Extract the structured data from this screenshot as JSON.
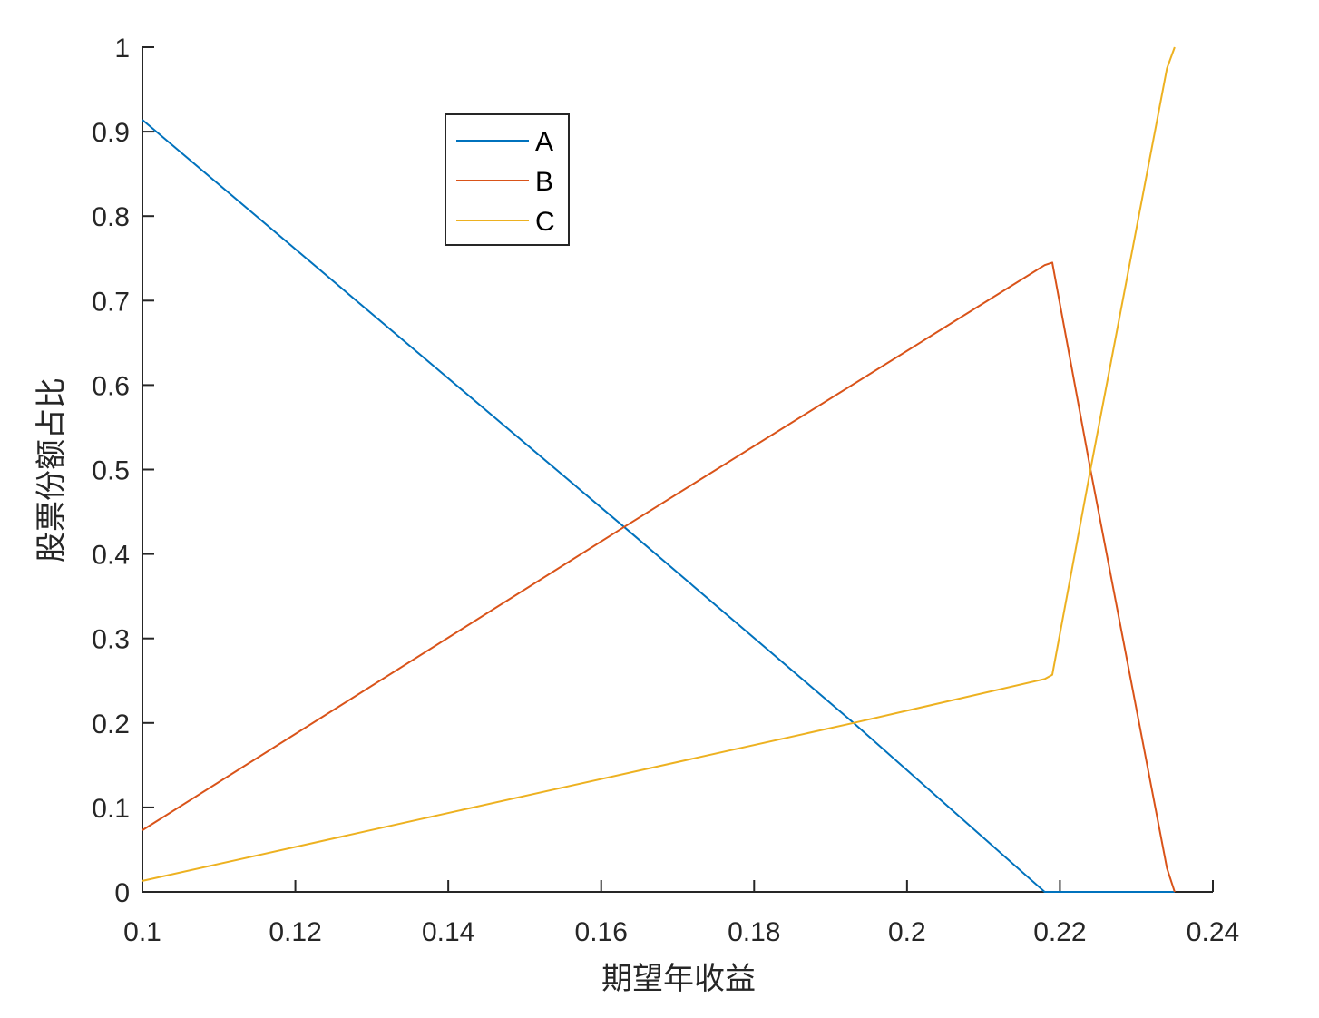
{
  "chart_data": {
    "type": "line",
    "xlabel": "期望年收益",
    "ylabel": "股票份额占比",
    "xlim": [
      0.1,
      0.24
    ],
    "ylim": [
      0,
      1
    ],
    "xticks": [
      0.1,
      0.12,
      0.14,
      0.16,
      0.18,
      0.2,
      0.22,
      0.24
    ],
    "xtick_labels": [
      "0.1",
      "0.12",
      "0.14",
      "0.16",
      "0.18",
      "0.2",
      "0.22",
      "0.24"
    ],
    "yticks": [
      0,
      0.1,
      0.2,
      0.3,
      0.4,
      0.5,
      0.6,
      0.7,
      0.8,
      0.9,
      1
    ],
    "ytick_labels": [
      "0",
      "0.1",
      "0.2",
      "0.3",
      "0.4",
      "0.5",
      "0.6",
      "0.7",
      "0.8",
      "0.9",
      "1"
    ],
    "grid": false,
    "legend_position": "top-left",
    "series": [
      {
        "name": "A",
        "color": "#0072BD",
        "points": [
          [
            0.1,
            0.914
          ],
          [
            0.163,
            0.432
          ],
          [
            0.193,
            0.2
          ],
          [
            0.218,
            0.0
          ],
          [
            0.235,
            0.0
          ]
        ]
      },
      {
        "name": "B",
        "color": "#D95319",
        "points": [
          [
            0.1,
            0.073
          ],
          [
            0.163,
            0.432
          ],
          [
            0.218,
            0.742
          ],
          [
            0.219,
            0.745
          ],
          [
            0.224,
            0.5
          ],
          [
            0.234,
            0.028
          ],
          [
            0.235,
            0.0
          ]
        ]
      },
      {
        "name": "C",
        "color": "#EDB120",
        "points": [
          [
            0.1,
            0.013
          ],
          [
            0.193,
            0.2
          ],
          [
            0.218,
            0.252
          ],
          [
            0.219,
            0.257
          ],
          [
            0.224,
            0.5
          ],
          [
            0.234,
            0.975
          ],
          [
            0.235,
            1.0
          ]
        ]
      }
    ]
  }
}
